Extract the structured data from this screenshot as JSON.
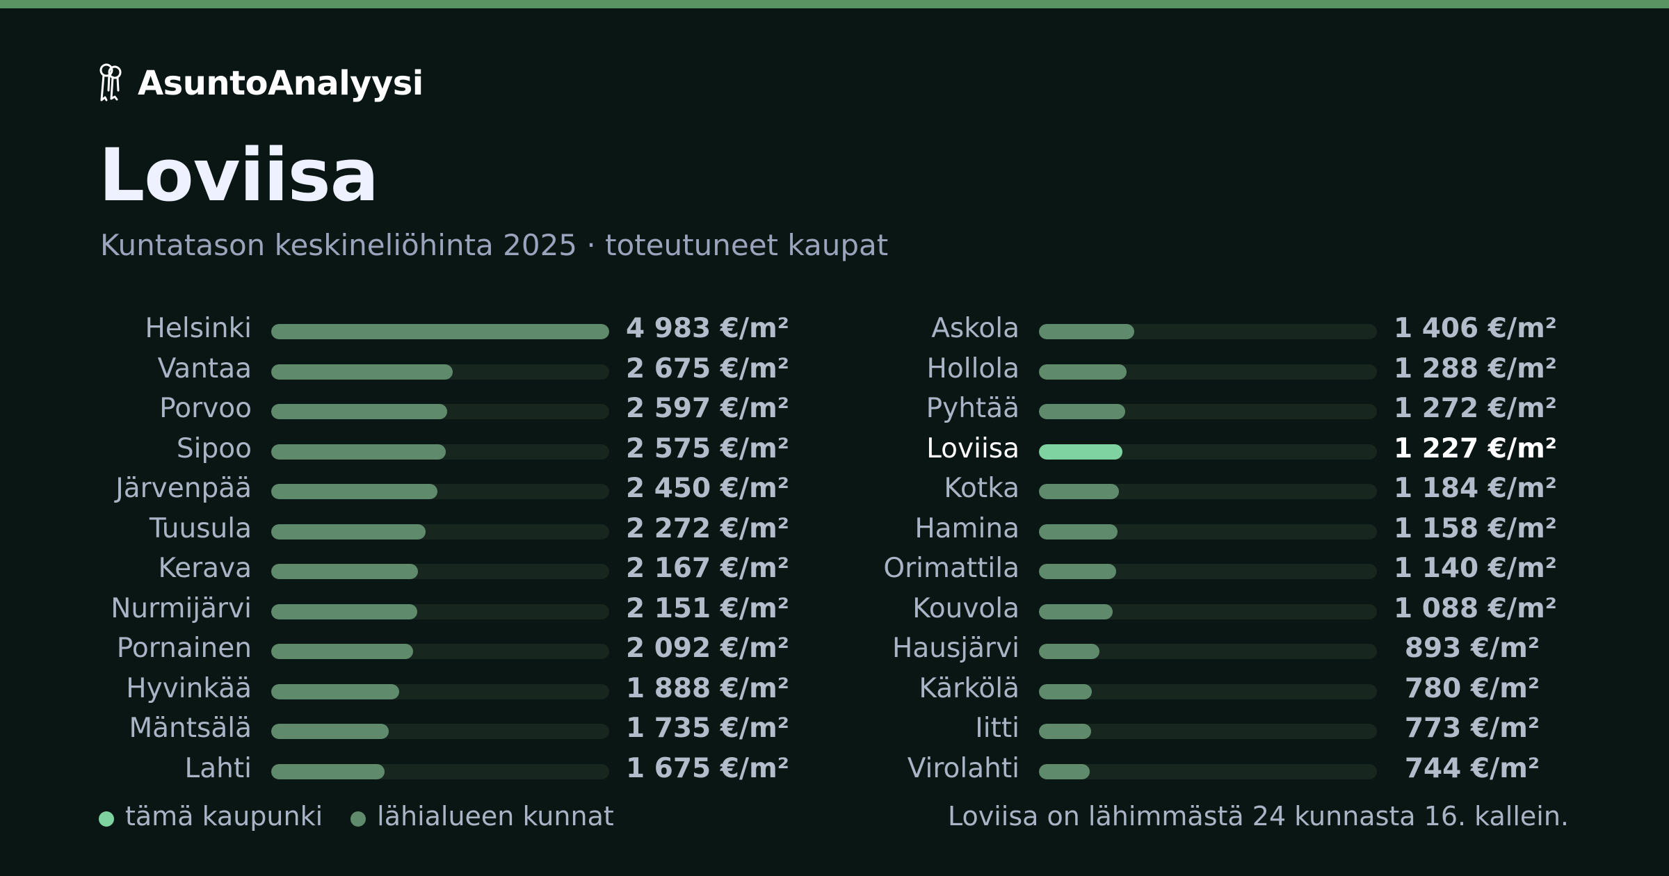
{
  "brand": {
    "name": "AsuntoAnalyysi",
    "icon": "keys-icon"
  },
  "title": "Loviisa",
  "subtitle": "Kuntatason keskineliöhinta 2025 · toteutuneet kaupat",
  "legend": {
    "city_label": "tämä kaupunki",
    "nearby_label": "lähialueen kunnat"
  },
  "footnote": "Loviisa on lähimmästä 24 kunnasta 16. kallein.",
  "colors": {
    "highlight": "#7fd3a0",
    "bar": "#5f8b6c",
    "track": "#17261f",
    "stripe": "#5a9463",
    "background": "#0a1613"
  },
  "chart_data": {
    "type": "bar",
    "orientation": "horizontal",
    "unit": "€/m²",
    "xlim": [
      0,
      4983
    ],
    "highlight": "Loviisa",
    "categories": [
      "Helsinki",
      "Vantaa",
      "Porvoo",
      "Sipoo",
      "Järvenpää",
      "Tuusula",
      "Kerava",
      "Nurmijärvi",
      "Pornainen",
      "Hyvinkää",
      "Mäntsälä",
      "Lahti",
      "Askola",
      "Hollola",
      "Pyhtää",
      "Loviisa",
      "Kotka",
      "Hamina",
      "Orimattila",
      "Kouvola",
      "Hausjärvi",
      "Kärkölä",
      "Iitti",
      "Virolahti"
    ],
    "values": [
      4983,
      2675,
      2597,
      2575,
      2450,
      2272,
      2167,
      2151,
      2092,
      1888,
      1735,
      1675,
      1406,
      1288,
      1272,
      1227,
      1184,
      1158,
      1140,
      1088,
      893,
      780,
      773,
      744
    ],
    "value_labels": [
      "4 983 €/m²",
      "2 675 €/m²",
      "2 597 €/m²",
      "2 575 €/m²",
      "2 450 €/m²",
      "2 272 €/m²",
      "2 167 €/m²",
      "2 151 €/m²",
      "2 092 €/m²",
      "1 888 €/m²",
      "1 735 €/m²",
      "1 675 €/m²",
      "1 406 €/m²",
      "1 288 €/m²",
      "1 272 €/m²",
      "1 227 €/m²",
      "1 184 €/m²",
      "1 158 €/m²",
      "1 140 €/m²",
      "1 088 €/m²",
      "893 €/m²",
      "780 €/m²",
      "773 €/m²",
      "744 €/m²"
    ]
  }
}
